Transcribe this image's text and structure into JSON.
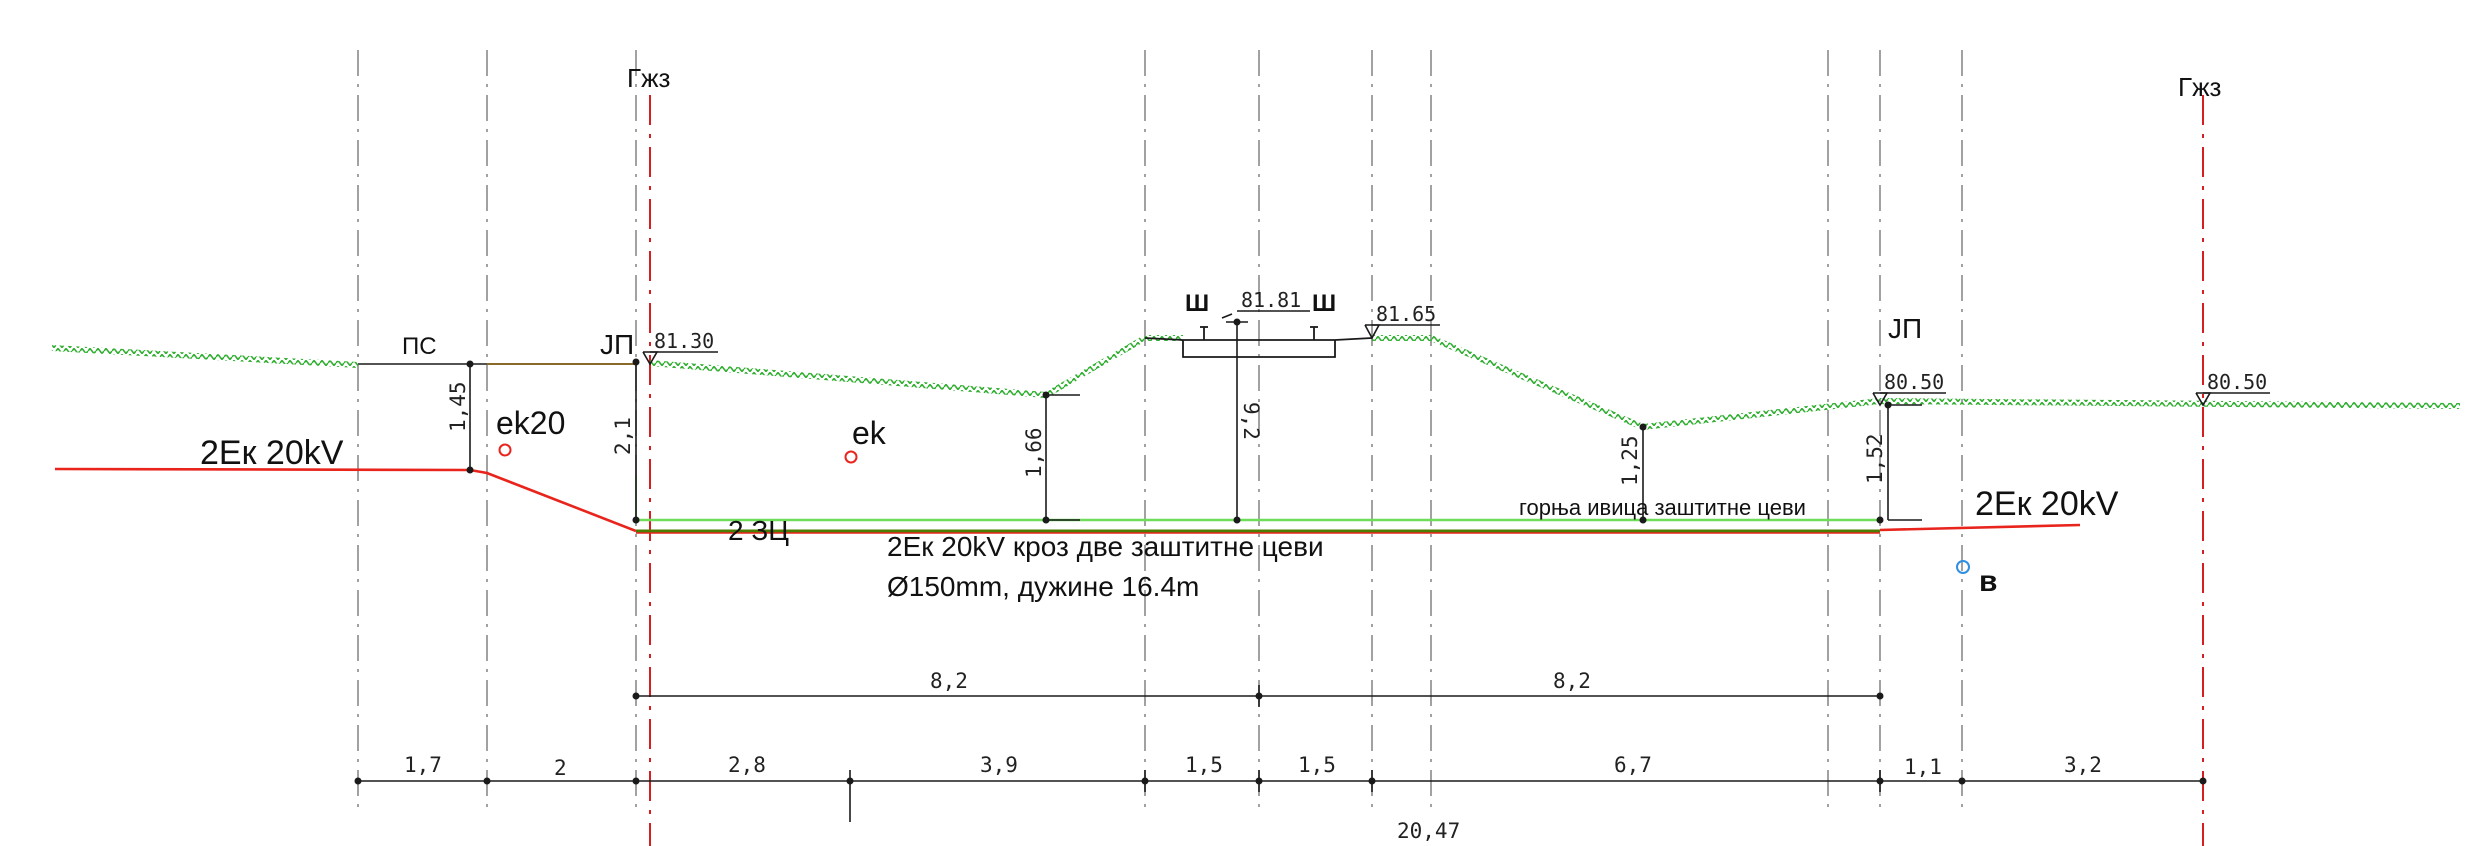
{
  "colors": {
    "ground": "#2fae2f",
    "cable": "#e8241c",
    "pipe_top": "#6fdc5a",
    "pipe_bottom": "#4a7d00",
    "axis_dashdot": "#d81e1e",
    "grid_dashdot": "#8a8a8a",
    "line": "#1a1a1a",
    "point_red": "#e8241c",
    "point_blue": "#2f8fe0"
  },
  "axis_labels": [
    "Гжз",
    "Гжз"
  ],
  "elevations": [
    "81.30",
    "81.81",
    "81.65",
    "80.50",
    "80.50"
  ],
  "rail_labels": [
    "Ш",
    "Ш"
  ],
  "point_labels": [
    "ПС",
    "ЈП",
    "ЈП"
  ],
  "cable_labels": [
    "2Ек 20kV",
    "2Ек 20kV",
    "2 ЗЦ"
  ],
  "marker_labels": [
    "ek20",
    "ek",
    "в"
  ],
  "note_lines": [
    "2Ек 20kV кроз две заштитне цеви",
    "Ø150mm, дужине 16.4m"
  ],
  "pipe_note": "горња ивица заштитне цеви",
  "depths": [
    "1,45",
    "2,1",
    "1,66",
    "9,2",
    "1,25",
    "1,52"
  ],
  "upper_dims": [
    "8,2",
    "8,2"
  ],
  "lower_dims": [
    "1,7",
    "2",
    "2,8",
    "3,9",
    "1,5",
    "1,5",
    "6,7",
    "1,1",
    "3,2"
  ],
  "total_dim": "20,47"
}
